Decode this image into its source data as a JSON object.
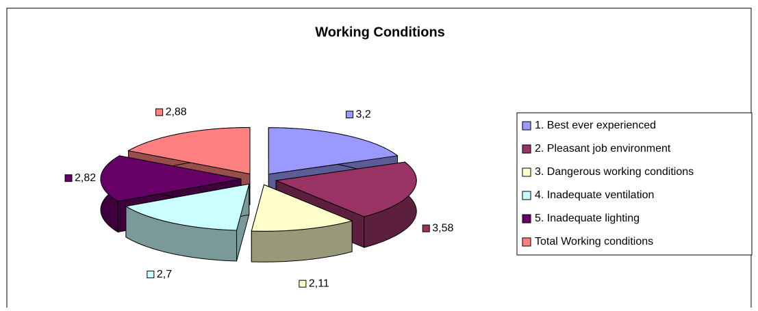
{
  "chart_data": {
    "type": "pie",
    "title": "Working Conditions",
    "categories": [
      "1. Best ever experienced",
      "2. Pleasant job environment",
      "3. Dangerous working conditions",
      "4. Inadequate ventilation",
      "5. Inadequate lighting",
      "Total Working conditions"
    ],
    "values": [
      3.2,
      3.58,
      2.11,
      2.7,
      2.82,
      2.88
    ],
    "value_labels": [
      "3,2",
      "3,58",
      "2,11",
      "2,7",
      "2,82",
      "2,88"
    ],
    "colors": [
      "#9999ff",
      "#993366",
      "#ffffcc",
      "#ccffff",
      "#660066",
      "#ff8080"
    ],
    "legend": "right"
  }
}
